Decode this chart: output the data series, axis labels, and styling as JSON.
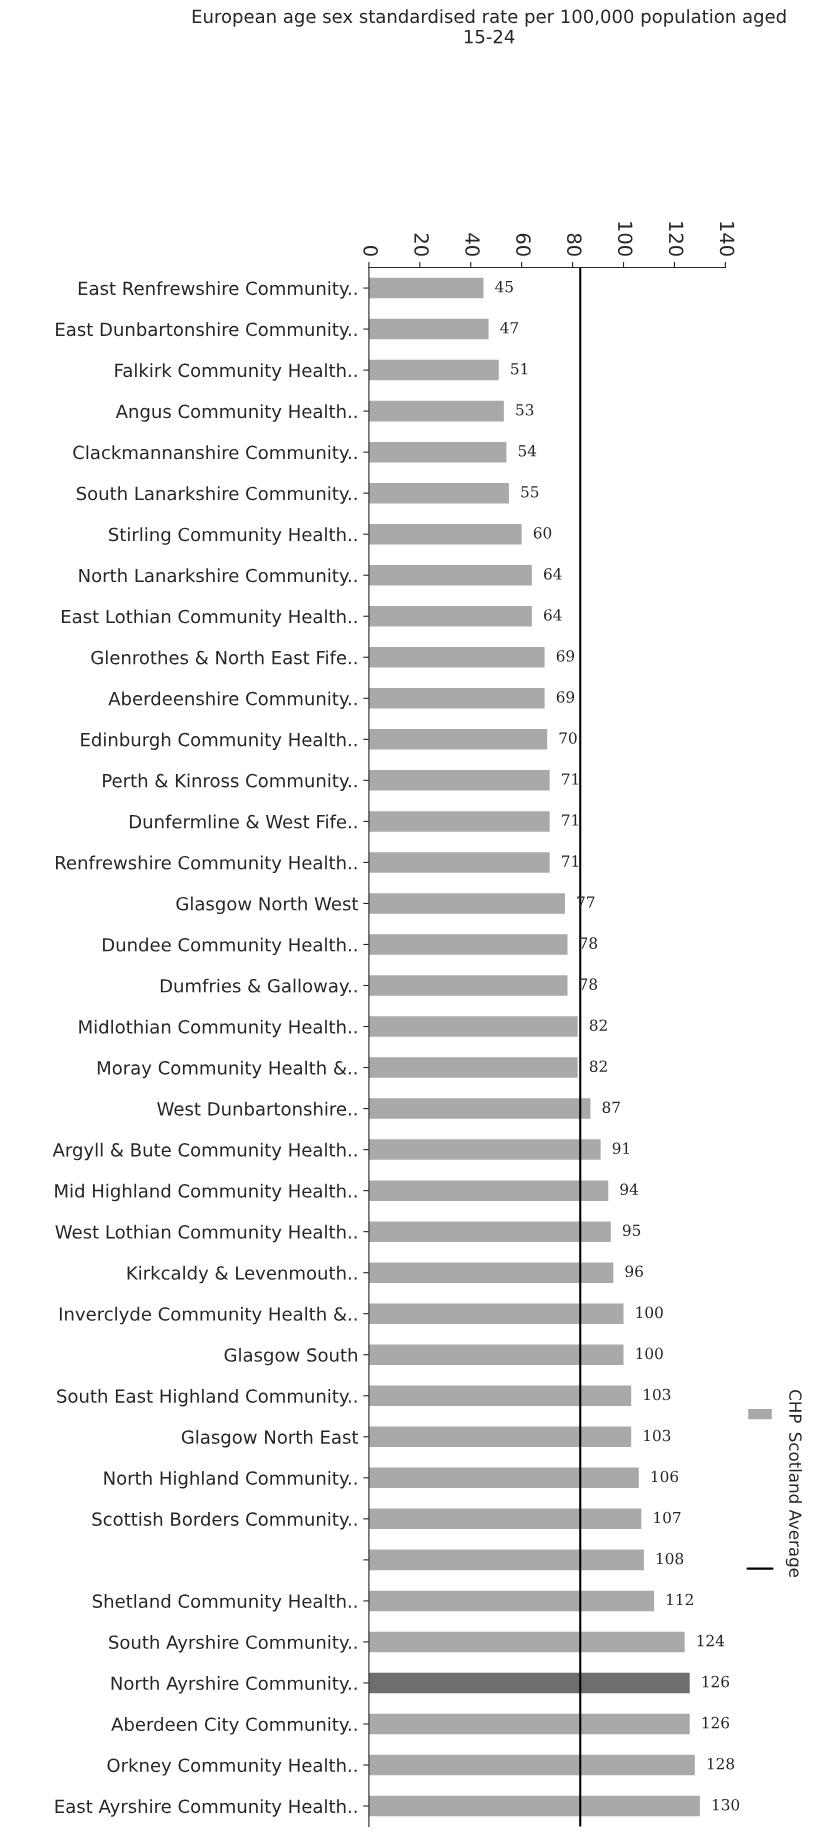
{
  "chart_data": {
    "type": "bar",
    "orientation": "horizontal",
    "title": "European age sex standardised rate per 100,000 population aged\n15-24",
    "categories": [
      "East Renfrewshire Community..",
      "East Dunbartonshire Community..",
      "Falkirk Community Health..",
      "Angus Community Health..",
      "Clackmannanshire Community..",
      "South Lanarkshire Community..",
      "Stirling Community Health..",
      "North Lanarkshire Community..",
      "East Lothian Community Health..",
      "Glenrothes & North East Fife..",
      "Aberdeenshire Community..",
      "Edinburgh Community Health..",
      "Perth & Kinross Community..",
      "Dunfermline & West Fife..",
      "Renfrewshire Community Health..",
      "Glasgow North West",
      "Dundee Community Health..",
      "Dumfries & Galloway..",
      "Midlothian Community Health..",
      "Moray Community Health &..",
      "West Dunbartonshire..",
      "Argyll & Bute Community Health..",
      "Mid Highland Community Health..",
      "West Lothian Community Health..",
      "Kirkcaldy & Levenmouth..",
      "Inverclyde Community Health &..",
      "Glasgow South",
      "South East Highland Community..",
      "Glasgow North East",
      "North Highland Community..",
      "Scottish Borders Community..",
      null,
      "Shetland Community Health..",
      "South Ayrshire Community..",
      "North Ayrshire Community..",
      "Aberdeen City Community..",
      "Orkney Community Health..",
      "East Ayrshire Community Health.."
    ],
    "series": [
      {
        "name": "CHP",
        "color": "#a9a9a9",
        "colors": [
          "#a9a9a9",
          "#a9a9a9",
          "#a9a9a9",
          "#a9a9a9",
          "#a9a9a9",
          "#a9a9a9",
          "#a9a9a9",
          "#a9a9a9",
          "#a9a9a9",
          "#a9a9a9",
          "#a9a9a9",
          "#a9a9a9",
          "#a9a9a9",
          "#a9a9a9",
          "#a9a9a9",
          "#a9a9a9",
          "#a9a9a9",
          "#a9a9a9",
          "#a9a9a9",
          "#a9a9a9",
          "#a9a9a9",
          "#a9a9a9",
          "#a9a9a9",
          "#a9a9a9",
          "#a9a9a9",
          "#a9a9a9",
          "#a9a9a9",
          "#a9a9a9",
          "#a9a9a9",
          "#a9a9a9",
          "#a9a9a9",
          "#a9a9a9",
          "#a9a9a9",
          "#a9a9a9",
          "#6e6e6e",
          "#a9a9a9",
          "#a9a9a9",
          "#a9a9a9"
        ],
        "values": [
          45,
          47,
          51,
          53,
          54,
          55,
          60,
          64,
          64,
          69,
          69,
          70,
          71,
          71,
          71,
          77,
          78,
          78,
          82,
          82,
          87,
          91,
          94,
          95,
          96,
          100,
          100,
          103,
          103,
          106,
          107,
          108,
          112,
          124,
          126,
          126,
          128,
          130
        ]
      }
    ],
    "ref_lines": [
      {
        "axis": "x",
        "value": 83,
        "label": "Scotland Average",
        "color": "#000000"
      }
    ],
    "xlim": [
      0,
      140
    ],
    "xticks": [
      0,
      20,
      40,
      60,
      80,
      100,
      120,
      140
    ],
    "data_labels": true,
    "legend": "right",
    "grid": false
  }
}
